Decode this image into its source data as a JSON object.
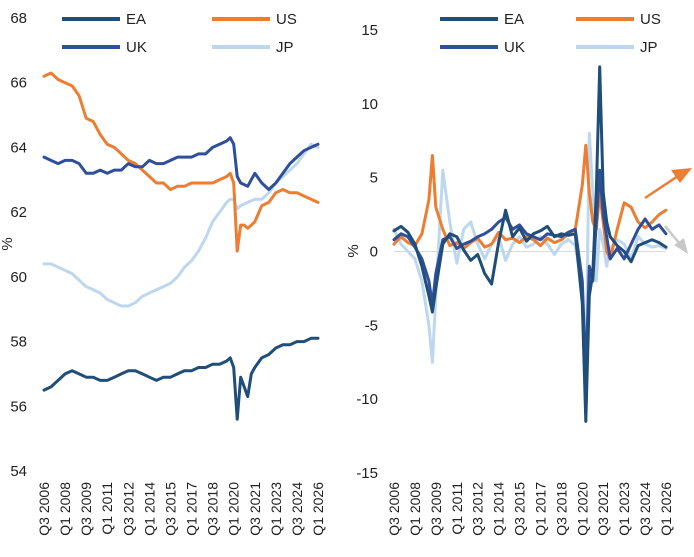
{
  "chart_data": [
    {
      "type": "line",
      "ylabel": "%",
      "ylim": [
        54,
        68
      ],
      "y_ticks": [
        "54",
        "56",
        "58",
        "60",
        "62",
        "64",
        "66",
        "68"
      ],
      "x_ticks": [
        "Q3 2006",
        "Q1 2008",
        "Q3 2009",
        "Q1 2011",
        "Q3 2012",
        "Q1 2014",
        "Q3 2015",
        "Q1 2017",
        "Q3 2018",
        "Q1 2020",
        "Q3 2021",
        "Q1 2023",
        "Q3 2024",
        "Q1 2026"
      ],
      "legend_position": "top",
      "series": [
        {
          "name": "EA",
          "color": "#1f4e79",
          "x": [
            2006.5,
            2007,
            2007.5,
            2008,
            2008.5,
            2009,
            2009.5,
            2010,
            2010.5,
            2011,
            2011.5,
            2012,
            2012.5,
            2013,
            2013.5,
            2014,
            2014.5,
            2015,
            2015.5,
            2016,
            2016.5,
            2017,
            2017.5,
            2018,
            2018.5,
            2019,
            2019.5,
            2019.75,
            2020,
            2020.25,
            2020.5,
            2020.75,
            2021,
            2021.25,
            2021.5,
            2022,
            2022.5,
            2023,
            2023.5,
            2024,
            2024.5,
            2025,
            2025.5,
            2026
          ],
          "values": [
            56.5,
            56.6,
            56.8,
            57.0,
            57.1,
            57.0,
            56.9,
            56.9,
            56.8,
            56.8,
            56.9,
            57.0,
            57.1,
            57.1,
            57.0,
            56.9,
            56.8,
            56.9,
            56.9,
            57.0,
            57.1,
            57.1,
            57.2,
            57.2,
            57.3,
            57.3,
            57.4,
            57.5,
            57.2,
            55.6,
            56.9,
            56.6,
            56.3,
            57.0,
            57.2,
            57.5,
            57.6,
            57.8,
            57.9,
            57.9,
            58.0,
            58.0,
            58.1,
            58.1
          ]
        },
        {
          "name": "US",
          "color": "#ed7d31",
          "x": [
            2006.5,
            2007,
            2007.5,
            2008,
            2008.5,
            2009,
            2009.5,
            2010,
            2010.5,
            2011,
            2011.5,
            2012,
            2012.5,
            2013,
            2013.5,
            2014,
            2014.5,
            2015,
            2015.5,
            2016,
            2016.5,
            2017,
            2017.5,
            2018,
            2018.5,
            2019,
            2019.5,
            2019.75,
            2020,
            2020.25,
            2020.5,
            2020.75,
            2021,
            2021.5,
            2022,
            2022.5,
            2023,
            2023.5,
            2024,
            2024.5,
            2025,
            2025.5,
            2026
          ],
          "values": [
            66.2,
            66.3,
            66.1,
            66.0,
            65.9,
            65.6,
            64.9,
            64.8,
            64.4,
            64.1,
            64.0,
            63.8,
            63.6,
            63.5,
            63.3,
            63.1,
            62.9,
            62.9,
            62.7,
            62.8,
            62.8,
            62.9,
            62.9,
            62.9,
            62.9,
            63.0,
            63.1,
            63.2,
            62.9,
            60.8,
            61.6,
            61.6,
            61.5,
            61.7,
            62.2,
            62.3,
            62.6,
            62.7,
            62.6,
            62.6,
            62.5,
            62.4,
            62.3
          ]
        },
        {
          "name": "UK",
          "color": "#2f4f9c",
          "x": [
            2006.5,
            2007,
            2007.5,
            2008,
            2008.5,
            2009,
            2009.5,
            2010,
            2010.5,
            2011,
            2011.5,
            2012,
            2012.5,
            2013,
            2013.5,
            2014,
            2014.5,
            2015,
            2015.5,
            2016,
            2016.5,
            2017,
            2017.5,
            2018,
            2018.5,
            2019,
            2019.5,
            2019.75,
            2020,
            2020.25,
            2020.5,
            2021,
            2021.5,
            2022,
            2022.5,
            2023,
            2023.5,
            2024,
            2024.5,
            2025,
            2025.5,
            2026
          ],
          "values": [
            63.7,
            63.6,
            63.5,
            63.6,
            63.6,
            63.5,
            63.2,
            63.2,
            63.3,
            63.2,
            63.3,
            63.3,
            63.5,
            63.4,
            63.4,
            63.6,
            63.5,
            63.5,
            63.6,
            63.7,
            63.7,
            63.7,
            63.8,
            63.8,
            64.0,
            64.1,
            64.2,
            64.3,
            64.1,
            63.1,
            62.9,
            62.8,
            63.2,
            62.9,
            62.7,
            62.9,
            63.2,
            63.5,
            63.7,
            63.9,
            64.0,
            64.1
          ]
        },
        {
          "name": "JP",
          "color": "#bdd7ee",
          "x": [
            2006.5,
            2007,
            2007.5,
            2008,
            2008.5,
            2009,
            2009.5,
            2010,
            2010.5,
            2011,
            2011.5,
            2012,
            2012.5,
            2013,
            2013.5,
            2014,
            2014.5,
            2015,
            2015.5,
            2016,
            2016.5,
            2017,
            2017.5,
            2018,
            2018.5,
            2019,
            2019.5,
            2019.75,
            2020,
            2020.25,
            2020.5,
            2021,
            2021.5,
            2022,
            2022.5,
            2023,
            2023.5,
            2024,
            2024.5,
            2025,
            2025.5,
            2026
          ],
          "values": [
            60.4,
            60.4,
            60.3,
            60.2,
            60.1,
            59.9,
            59.7,
            59.6,
            59.5,
            59.3,
            59.2,
            59.1,
            59.1,
            59.2,
            59.4,
            59.5,
            59.6,
            59.7,
            59.8,
            60.0,
            60.3,
            60.5,
            60.8,
            61.2,
            61.7,
            62.0,
            62.3,
            62.4,
            62.4,
            62.1,
            62.2,
            62.3,
            62.4,
            62.4,
            62.6,
            62.9,
            63.1,
            63.3,
            63.5,
            63.8,
            64.1,
            64.0
          ]
        }
      ]
    },
    {
      "type": "line",
      "ylabel": "%",
      "ylim": [
        -15,
        15
      ],
      "y_ticks": [
        "-15",
        "-10",
        "-5",
        "0",
        "5",
        "10",
        "15"
      ],
      "x_ticks": [
        "Q3 2006",
        "Q1 2008",
        "Q3 2009",
        "Q1 2011",
        "Q3 2012",
        "Q1 2014",
        "Q3 2015",
        "Q1 2017",
        "Q3 2018",
        "Q1 2020",
        "Q3 2021",
        "Q1 2023",
        "Q3 2024",
        "Q1 2026"
      ],
      "legend_position": "top",
      "series": [
        {
          "name": "EA",
          "color": "#1f4e79",
          "x": [
            2006.5,
            2007,
            2007.5,
            2008,
            2008.5,
            2009,
            2009.25,
            2009.5,
            2010,
            2010.5,
            2011,
            2011.5,
            2012,
            2012.5,
            2013,
            2013.5,
            2014,
            2014.5,
            2015,
            2015.5,
            2016,
            2016.5,
            2017,
            2017.5,
            2018,
            2018.5,
            2019,
            2019.5,
            2020,
            2020.25,
            2020.5,
            2020.75,
            2021,
            2021.25,
            2021.5,
            2021.75,
            2022,
            2022.5,
            2023,
            2023.5,
            2024,
            2024.5,
            2025,
            2025.5,
            2026
          ],
          "values": [
            1.4,
            1.7,
            1.3,
            0.5,
            -1.0,
            -3.0,
            -4.1,
            -2.5,
            0.5,
            1.2,
            1.0,
            0.1,
            -0.6,
            -0.2,
            -1.5,
            -2.2,
            0.6,
            2.8,
            1.0,
            1.6,
            0.7,
            1.2,
            1.4,
            1.7,
            1.0,
            1.2,
            1.1,
            1.2,
            -3.5,
            -11.5,
            -3.0,
            -1.5,
            4.0,
            12.5,
            4.0,
            2.0,
            1.0,
            0.4,
            0.0,
            -0.7,
            0.4,
            0.6,
            0.8,
            0.6,
            0.3
          ]
        },
        {
          "name": "US",
          "color": "#ed7d31",
          "x": [
            2006.5,
            2007,
            2007.5,
            2008,
            2008.5,
            2009,
            2009.25,
            2009.5,
            2010,
            2010.5,
            2011,
            2011.5,
            2012,
            2012.5,
            2013,
            2013.5,
            2014,
            2014.5,
            2015,
            2015.5,
            2016,
            2016.5,
            2017,
            2017.5,
            2018,
            2018.5,
            2019,
            2019.5,
            2020,
            2020.25,
            2020.5,
            2020.75,
            2021,
            2021.25,
            2021.5,
            2021.75,
            2022,
            2022.5,
            2023,
            2023.5,
            2024,
            2024.5,
            2025,
            2025.5,
            2026
          ],
          "values": [
            0.5,
            1.0,
            0.6,
            0.4,
            1.2,
            3.5,
            6.5,
            3.0,
            1.5,
            0.4,
            0.6,
            0.2,
            0.6,
            0.9,
            0.3,
            0.5,
            1.3,
            0.8,
            0.9,
            0.6,
            1.0,
            0.8,
            0.4,
            0.9,
            0.6,
            0.8,
            1.2,
            1.5,
            4.5,
            7.2,
            4.0,
            2.0,
            1.5,
            4.0,
            2.0,
            0.0,
            -0.5,
            1.5,
            3.3,
            3.0,
            2.0,
            1.6,
            2.0,
            2.5,
            2.8
          ]
        },
        {
          "name": "UK",
          "color": "#2f4f9c",
          "x": [
            2006.5,
            2007,
            2007.5,
            2008,
            2008.5,
            2009,
            2009.25,
            2009.5,
            2010,
            2010.5,
            2011,
            2011.5,
            2012,
            2012.5,
            2013,
            2013.5,
            2014,
            2014.5,
            2015,
            2015.5,
            2016,
            2016.5,
            2017,
            2017.5,
            2018,
            2018.5,
            2019,
            2019.5,
            2020,
            2020.25,
            2020.5,
            2020.75,
            2021,
            2021.25,
            2021.5,
            2021.75,
            2022,
            2022.5,
            2023,
            2023.5,
            2024,
            2024.5,
            2025,
            2025.5,
            2026
          ],
          "values": [
            0.8,
            1.2,
            1.0,
            0.3,
            -0.5,
            -2.0,
            -3.6,
            -1.5,
            0.8,
            1.0,
            0.2,
            0.5,
            0.7,
            1.0,
            1.2,
            1.5,
            2.0,
            2.3,
            1.5,
            1.8,
            1.2,
            1.0,
            0.8,
            1.2,
            1.1,
            1.0,
            1.3,
            1.5,
            -2.0,
            -8.5,
            -1.0,
            -2.0,
            2.0,
            5.5,
            2.5,
            1.0,
            -0.5,
            0.2,
            -0.5,
            0.5,
            1.5,
            2.2,
            1.5,
            1.8,
            1.2
          ]
        },
        {
          "name": "JP",
          "color": "#bdd7ee",
          "x": [
            2006.5,
            2007,
            2007.5,
            2008,
            2008.5,
            2009,
            2009.25,
            2009.5,
            2010,
            2010.5,
            2011,
            2011.5,
            2012,
            2012.5,
            2013,
            2013.5,
            2014,
            2014.5,
            2015,
            2015.5,
            2016,
            2016.5,
            2017,
            2017.5,
            2018,
            2018.5,
            2019,
            2019.5,
            2020,
            2020.25,
            2020.5,
            2020.75,
            2021,
            2021.25,
            2021.5,
            2021.75,
            2022,
            2022.5,
            2023,
            2023.5,
            2024,
            2024.5,
            2025,
            2025.5,
            2026
          ],
          "values": [
            1.5,
            0.5,
            0.0,
            -0.5,
            -2.0,
            -5.0,
            -7.5,
            -3.0,
            5.5,
            2.0,
            -0.8,
            1.5,
            2.0,
            0.5,
            -0.5,
            0.5,
            1.0,
            -0.6,
            0.5,
            1.0,
            0.3,
            0.5,
            1.0,
            0.5,
            -0.2,
            0.5,
            0.8,
            0.4,
            -2.5,
            -9.0,
            8.0,
            4.0,
            -2.0,
            1.5,
            0.5,
            -1.0,
            0.2,
            0.8,
            0.5,
            -0.5,
            1.0,
            0.5,
            0.3,
            0.4,
            0.2
          ]
        }
      ]
    }
  ]
}
